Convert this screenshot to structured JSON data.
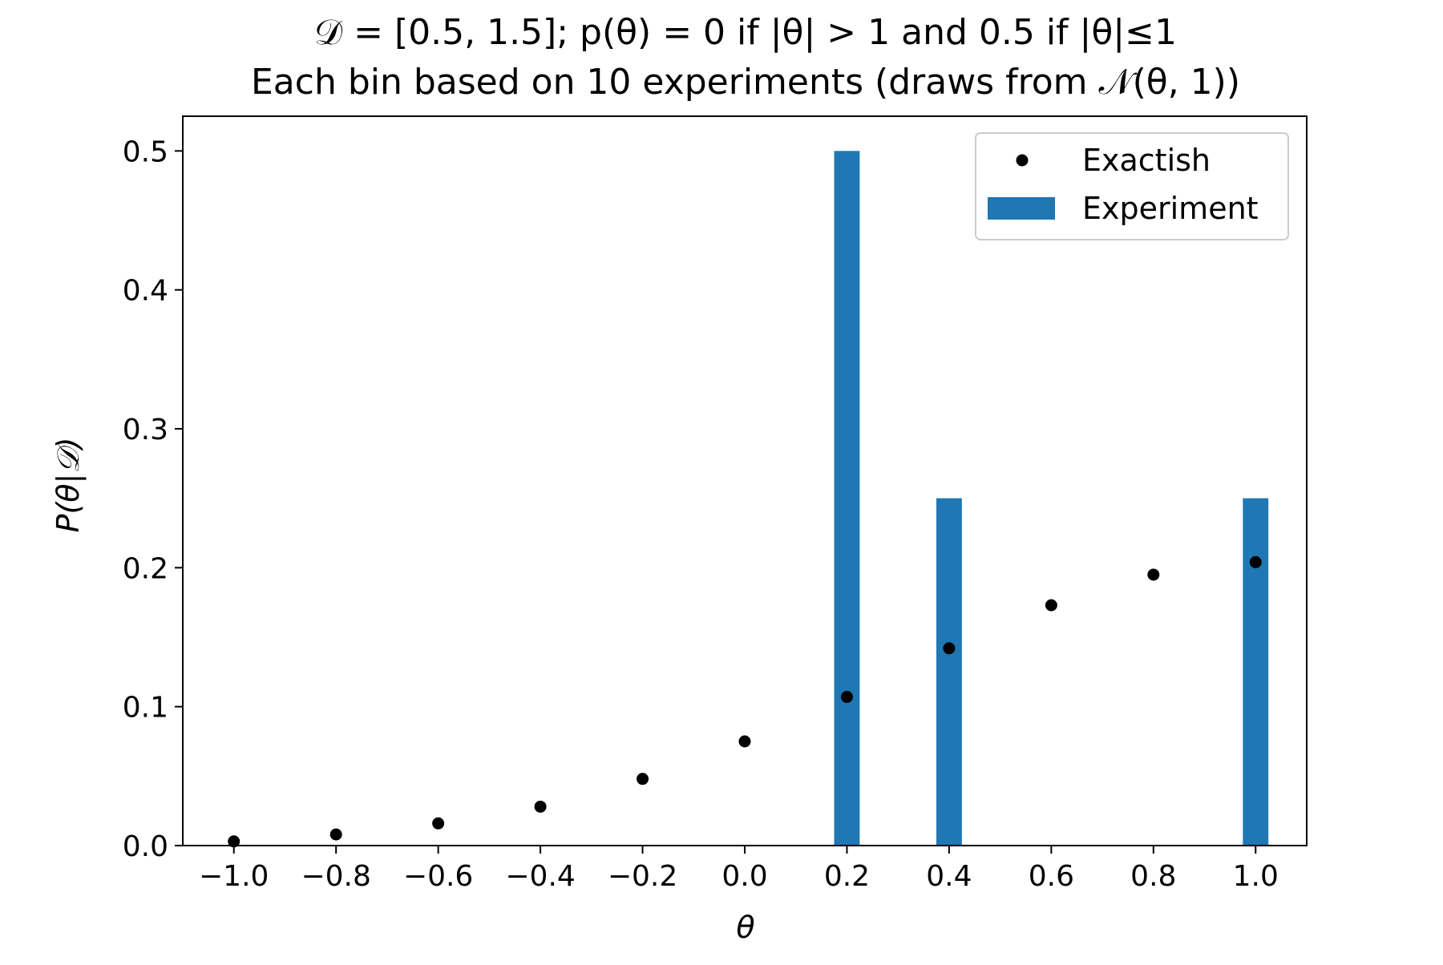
{
  "chart_data": {
    "type": "bar",
    "title": "𝒟 = [0.5, 1.5]; p(θ) = 0 if |θ| > 1 and 0.5 if |θ|≤1",
    "subtitle": "Each bin based on 10 experiments (draws from 𝒩(θ, 1))",
    "xlabel": "θ",
    "ylabel": "P(θ|𝒟)",
    "xlim": [
      -1.1,
      1.1
    ],
    "ylim": [
      0,
      0.525
    ],
    "xticks": [
      -1.0,
      -0.8,
      -0.6,
      -0.4,
      -0.2,
      0.0,
      0.2,
      0.4,
      0.6,
      0.8,
      1.0
    ],
    "xtick_labels": [
      "−1.0",
      "−0.8",
      "−0.6",
      "−0.4",
      "−0.2",
      "0.0",
      "0.2",
      "0.4",
      "0.6",
      "0.8",
      "1.0"
    ],
    "yticks": [
      0.0,
      0.1,
      0.2,
      0.3,
      0.4,
      0.5
    ],
    "ytick_labels": [
      "0.0",
      "0.1",
      "0.2",
      "0.3",
      "0.4",
      "0.5"
    ],
    "grid": false,
    "legend_position": "top-right",
    "series": [
      {
        "name": "Exactish",
        "type": "scatter",
        "color": "#000000",
        "x": [
          -1.0,
          -0.8,
          -0.6,
          -0.4,
          -0.2,
          0.0,
          0.2,
          0.4,
          0.6,
          0.8,
          1.0
        ],
        "y": [
          0.003,
          0.008,
          0.016,
          0.028,
          0.048,
          0.075,
          0.107,
          0.142,
          0.173,
          0.195,
          0.204
        ]
      },
      {
        "name": "Experiment",
        "type": "bar",
        "color": "#1f77b4",
        "bar_width": 0.05,
        "x": [
          0.2,
          0.4,
          1.0
        ],
        "y": [
          0.5,
          0.25,
          0.25
        ]
      }
    ]
  }
}
